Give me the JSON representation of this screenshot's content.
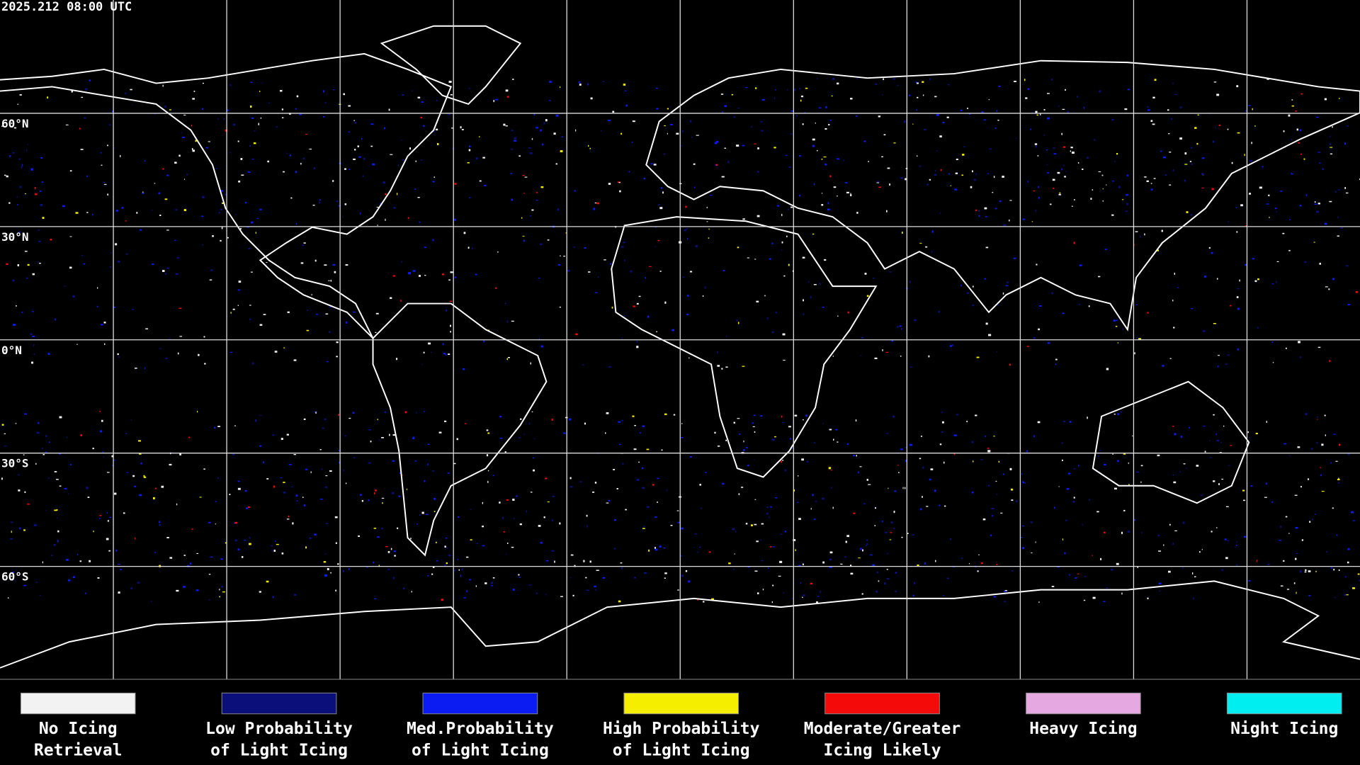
{
  "header": {
    "timestamp": "2025.212 08:00 UTC"
  },
  "map": {
    "lat_labels": [
      "60°N",
      "30°N",
      "0°N",
      "30°S",
      "60°S"
    ]
  },
  "legend": [
    {
      "lines": [
        "No Icing",
        "Retrieval"
      ],
      "color": "#f2f2f2"
    },
    {
      "lines": [
        "Low Probability",
        "of Light Icing"
      ],
      "color": "#0b0f7a"
    },
    {
      "lines": [
        "Med.Probability",
        "of Light Icing"
      ],
      "color": "#0a1cf2"
    },
    {
      "lines": [
        "High Probability",
        "of Light Icing"
      ],
      "color": "#f5ee00"
    },
    {
      "lines": [
        "Moderate/Greater",
        "Icing Likely"
      ],
      "color": "#f50a0a"
    },
    {
      "lines": [
        "Heavy Icing"
      ],
      "color": "#e6a8e0"
    },
    {
      "lines": [
        "Night Icing"
      ],
      "color": "#00eef0"
    }
  ]
}
